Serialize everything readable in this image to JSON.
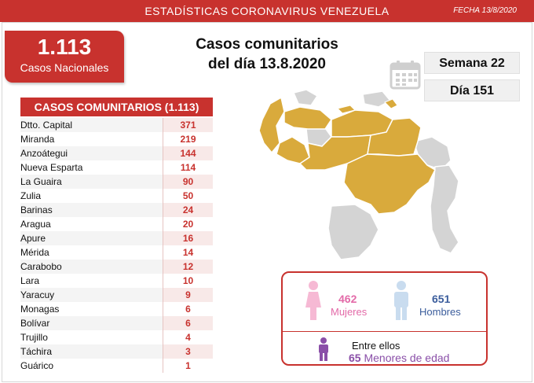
{
  "header": {
    "title": "ESTADÍSTICAS CORONAVIRUS VENEZUELA",
    "date": "FECHA 13/8/2020"
  },
  "total": {
    "number": "1.113",
    "label": "Casos Nacionales"
  },
  "headline": {
    "line1": "Casos comunitarios",
    "line2": "del día 13.8.2020"
  },
  "week_label": "Semana 22",
  "day_label": "Día 151",
  "table": {
    "header": "CASOS COMUNITARIOS (1.113)",
    "rows": [
      {
        "state": "Dtto. Capital",
        "count": "371"
      },
      {
        "state": "Miranda",
        "count": "219"
      },
      {
        "state": "Anzoátegui",
        "count": "144"
      },
      {
        "state": "Nueva Esparta",
        "count": "114"
      },
      {
        "state": "La Guaira",
        "count": "90"
      },
      {
        "state": "Zulia",
        "count": "50"
      },
      {
        "state": "Barinas",
        "count": "24"
      },
      {
        "state": "Aragua",
        "count": "20"
      },
      {
        "state": "Apure",
        "count": "16"
      },
      {
        "state": "Mérida",
        "count": "14"
      },
      {
        "state": "Carabobo",
        "count": "12"
      },
      {
        "state": "Lara",
        "count": "10"
      },
      {
        "state": "Yaracuy",
        "count": "9"
      },
      {
        "state": "Monagas",
        "count": "6"
      },
      {
        "state": "Bolívar",
        "count": "6"
      },
      {
        "state": "Trujillo",
        "count": "4"
      },
      {
        "state": "Táchira",
        "count": "3"
      },
      {
        "state": "Guárico",
        "count": "1"
      }
    ]
  },
  "gender": {
    "female_count": "462",
    "female_label": "Mujeres",
    "male_count": "651",
    "male_label": "Hombres",
    "minors_intro": "Entre ellos",
    "minors_count": "65",
    "minors_label": "Menores de edad"
  },
  "colors": {
    "accent_red": "#c8322e",
    "map_affected": "#d9aa3c",
    "map_unaffected": "#d4d4d4",
    "female": "#e36aa8",
    "male": "#3b5d9c",
    "minors": "#8a4fa8"
  },
  "icons": [
    "calendar-icon",
    "female-icon",
    "male-icon",
    "child-icon"
  ]
}
